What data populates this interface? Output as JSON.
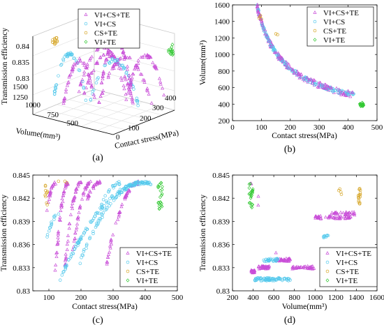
{
  "legend_labels": [
    "VI+CS+TE",
    "VI+CS",
    "CS+TE",
    "VI+TE"
  ],
  "series_colors": {
    "VI+CS+TE": "#c94fd8",
    "VI+CS": "#55c9ec",
    "CS+TE": "#d6a628",
    "VI+TE": "#34c934"
  },
  "chart_data": [
    {
      "type": "scatter",
      "panel_label": "(a)",
      "projection": "3d",
      "xlabel": "Volume(mm³)",
      "ylabel": "Contact stress(MPa)",
      "zlabel": "Transmission efficiency",
      "x_ticks": [
        "1500",
        "1250",
        "1000",
        "750",
        "500"
      ],
      "y_ticks": [
        "0",
        "100",
        "200",
        "300",
        "400"
      ],
      "z_ticks": [
        "0.83",
        "0.835",
        "0.84"
      ],
      "legend": [
        "VI+CS+TE",
        "VI+CS",
        "CS+TE",
        "VI+TE"
      ],
      "legend_placement": "top-center",
      "grid": true
    },
    {
      "type": "scatter",
      "panel_label": "(b)",
      "xlabel": "Contact stress(MPa)",
      "ylabel": "Volume(mm³)",
      "xlim": [
        0,
        500
      ],
      "ylim": [
        200,
        1600
      ],
      "x_ticks": [
        "0",
        "100",
        "200",
        "300",
        "400",
        "500"
      ],
      "y_ticks": [
        "200",
        "400",
        "600",
        "800",
        "1000",
        "1200",
        "1400",
        "1600"
      ],
      "legend": [
        "VI+CS+TE",
        "VI+CS",
        "CS+TE",
        "VI+TE"
      ],
      "legend_placement": "top-right",
      "grid": false
    },
    {
      "type": "scatter",
      "panel_label": "(c)",
      "xlabel": "Contact stress(MPa)",
      "ylabel": "Transmission efficiency",
      "xlim": [
        50,
        500
      ],
      "ylim": [
        0.83,
        0.845
      ],
      "x_ticks": [
        "100",
        "200",
        "300",
        "400",
        "500"
      ],
      "y_ticks": [
        "0.83",
        "0.833",
        "0.836",
        "0.839",
        "0.842",
        "0.845"
      ],
      "legend": [
        "VI+CS+TE",
        "VI+CS",
        "CS+TE",
        "VI+TE"
      ],
      "legend_placement": "bottom-right",
      "grid": false
    },
    {
      "type": "scatter",
      "panel_label": "(d)",
      "xlabel": "Volume(mm³)",
      "ylabel": "Transmission efficiency",
      "xlim": [
        200,
        1600
      ],
      "ylim": [
        0.83,
        0.845
      ],
      "x_ticks": [
        "200",
        "400",
        "600",
        "800",
        "1000",
        "1200",
        "1400",
        "1600"
      ],
      "y_ticks": [
        "0.83",
        "0.833",
        "0.836",
        "0.839",
        "0.842",
        "0.845"
      ],
      "legend": [
        "VI+CS+TE",
        "VI+CS",
        "CS+TE",
        "VI+TE"
      ],
      "legend_placement": "bottom-right",
      "grid": false
    }
  ]
}
